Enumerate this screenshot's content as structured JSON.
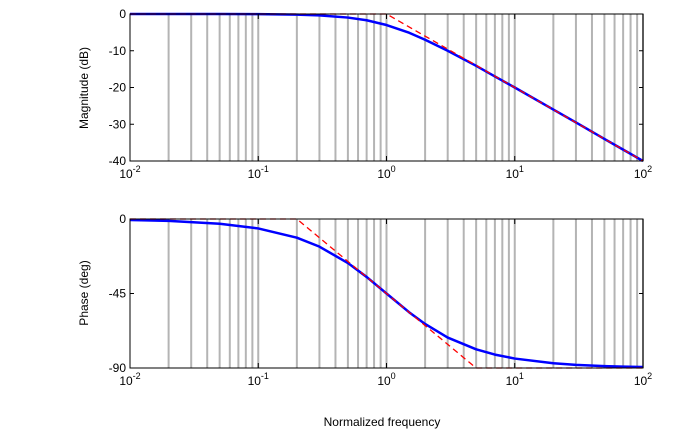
{
  "chart_data": [
    {
      "type": "line",
      "ylabel": "Magnitude (dB)",
      "xscale": "log",
      "xlim": [
        0.01,
        100
      ],
      "ylim": [
        -40,
        0
      ],
      "grid": "x-minor",
      "x_tick_labels": [
        {
          "base": "10",
          "exp": "-2"
        },
        {
          "base": "10",
          "exp": "-1"
        },
        {
          "base": "10",
          "exp": "0"
        },
        {
          "base": "10",
          "exp": "1"
        },
        {
          "base": "10",
          "exp": "2"
        }
      ],
      "y_ticks": [
        {
          "value": 0,
          "label": "0"
        },
        {
          "value": -10,
          "label": "-10"
        },
        {
          "value": -20,
          "label": "-20"
        },
        {
          "value": -30,
          "label": "-30"
        },
        {
          "value": -40,
          "label": "-40"
        }
      ],
      "series": [
        {
          "color": "#0000ff",
          "style": "solid",
          "x": [
            0.01,
            0.02,
            0.05,
            0.1,
            0.2,
            0.3,
            0.5,
            0.7,
            1,
            1.5,
            2,
            3,
            5,
            7,
            10,
            20,
            30,
            50,
            70,
            100
          ],
          "y": [
            0,
            0,
            -0.01,
            -0.04,
            -0.17,
            -0.37,
            -0.97,
            -1.7,
            -3.0,
            -5.1,
            -7.0,
            -10.0,
            -14.1,
            -17.0,
            -20.0,
            -26.0,
            -29.5,
            -34.0,
            -36.9,
            -40.0
          ]
        },
        {
          "color": "#ff0000",
          "style": "dashed",
          "x": [
            0.01,
            1,
            100
          ],
          "y": [
            0,
            0,
            -40
          ]
        }
      ]
    },
    {
      "type": "line",
      "xlabel": "Normalized frequency",
      "ylabel": "Phase (deg)",
      "xscale": "log",
      "xlim": [
        0.01,
        100
      ],
      "ylim": [
        -90,
        0
      ],
      "grid": "x-minor",
      "x_tick_labels": [
        {
          "base": "10",
          "exp": "-2"
        },
        {
          "base": "10",
          "exp": "-1"
        },
        {
          "base": "10",
          "exp": "0"
        },
        {
          "base": "10",
          "exp": "1"
        },
        {
          "base": "10",
          "exp": "2"
        }
      ],
      "y_ticks": [
        {
          "value": 0,
          "label": "0"
        },
        {
          "value": -45,
          "label": "-45"
        },
        {
          "value": -90,
          "label": "-90"
        }
      ],
      "series": [
        {
          "color": "#0000ff",
          "style": "solid",
          "x": [
            0.01,
            0.02,
            0.05,
            0.1,
            0.2,
            0.3,
            0.5,
            0.7,
            1,
            1.5,
            2,
            3,
            5,
            7,
            10,
            20,
            30,
            50,
            70,
            100
          ],
          "y": [
            -0.6,
            -1.1,
            -2.9,
            -5.7,
            -11.3,
            -16.7,
            -26.6,
            -35.0,
            -45.0,
            -56.3,
            -63.4,
            -71.6,
            -78.7,
            -81.9,
            -84.3,
            -87.1,
            -88.1,
            -88.9,
            -89.2,
            -89.4
          ]
        },
        {
          "color": "#ff0000",
          "style": "dashed",
          "x": [
            0.01,
            0.2,
            5,
            100
          ],
          "y": [
            0,
            0,
            -90,
            -90
          ]
        }
      ]
    }
  ]
}
